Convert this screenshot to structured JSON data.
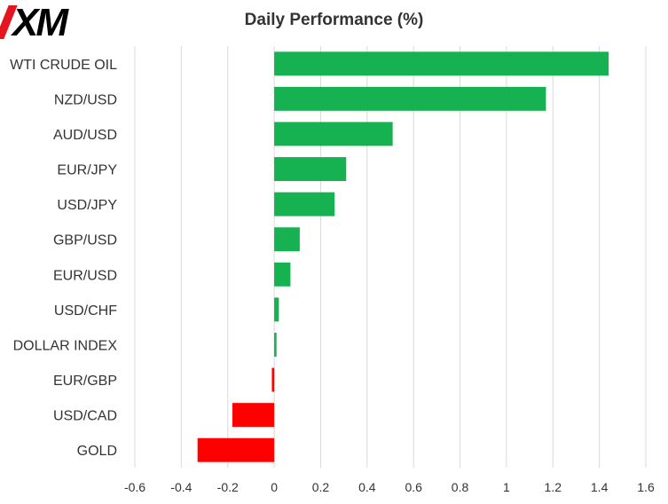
{
  "brand": {
    "logo_text": "XM",
    "accent_color": "#e4151f"
  },
  "chart_data": {
    "type": "bar",
    "orientation": "horizontal",
    "title": "Daily Performance (%)",
    "categories": [
      "WTI CRUDE OIL",
      "NZD/USD",
      "AUD/USD",
      "EUR/JPY",
      "USD/JPY",
      "GBP/USD",
      "EUR/USD",
      "USD/CHF",
      "DOLLAR INDEX",
      "EUR/GBP",
      "USD/CAD",
      "GOLD"
    ],
    "values": [
      1.44,
      1.17,
      0.51,
      0.31,
      0.26,
      0.11,
      0.07,
      0.02,
      0.01,
      -0.01,
      -0.18,
      -0.33
    ],
    "xlim": [
      -0.6,
      1.6
    ],
    "xticks": [
      -0.6,
      -0.4,
      -0.2,
      0,
      0.2,
      0.4,
      0.6,
      0.8,
      1,
      1.2,
      1.4,
      1.6
    ],
    "grid": "vertical",
    "positive_color": "#16b150",
    "negative_color": "#ff0000",
    "xlabel": "",
    "ylabel": ""
  }
}
